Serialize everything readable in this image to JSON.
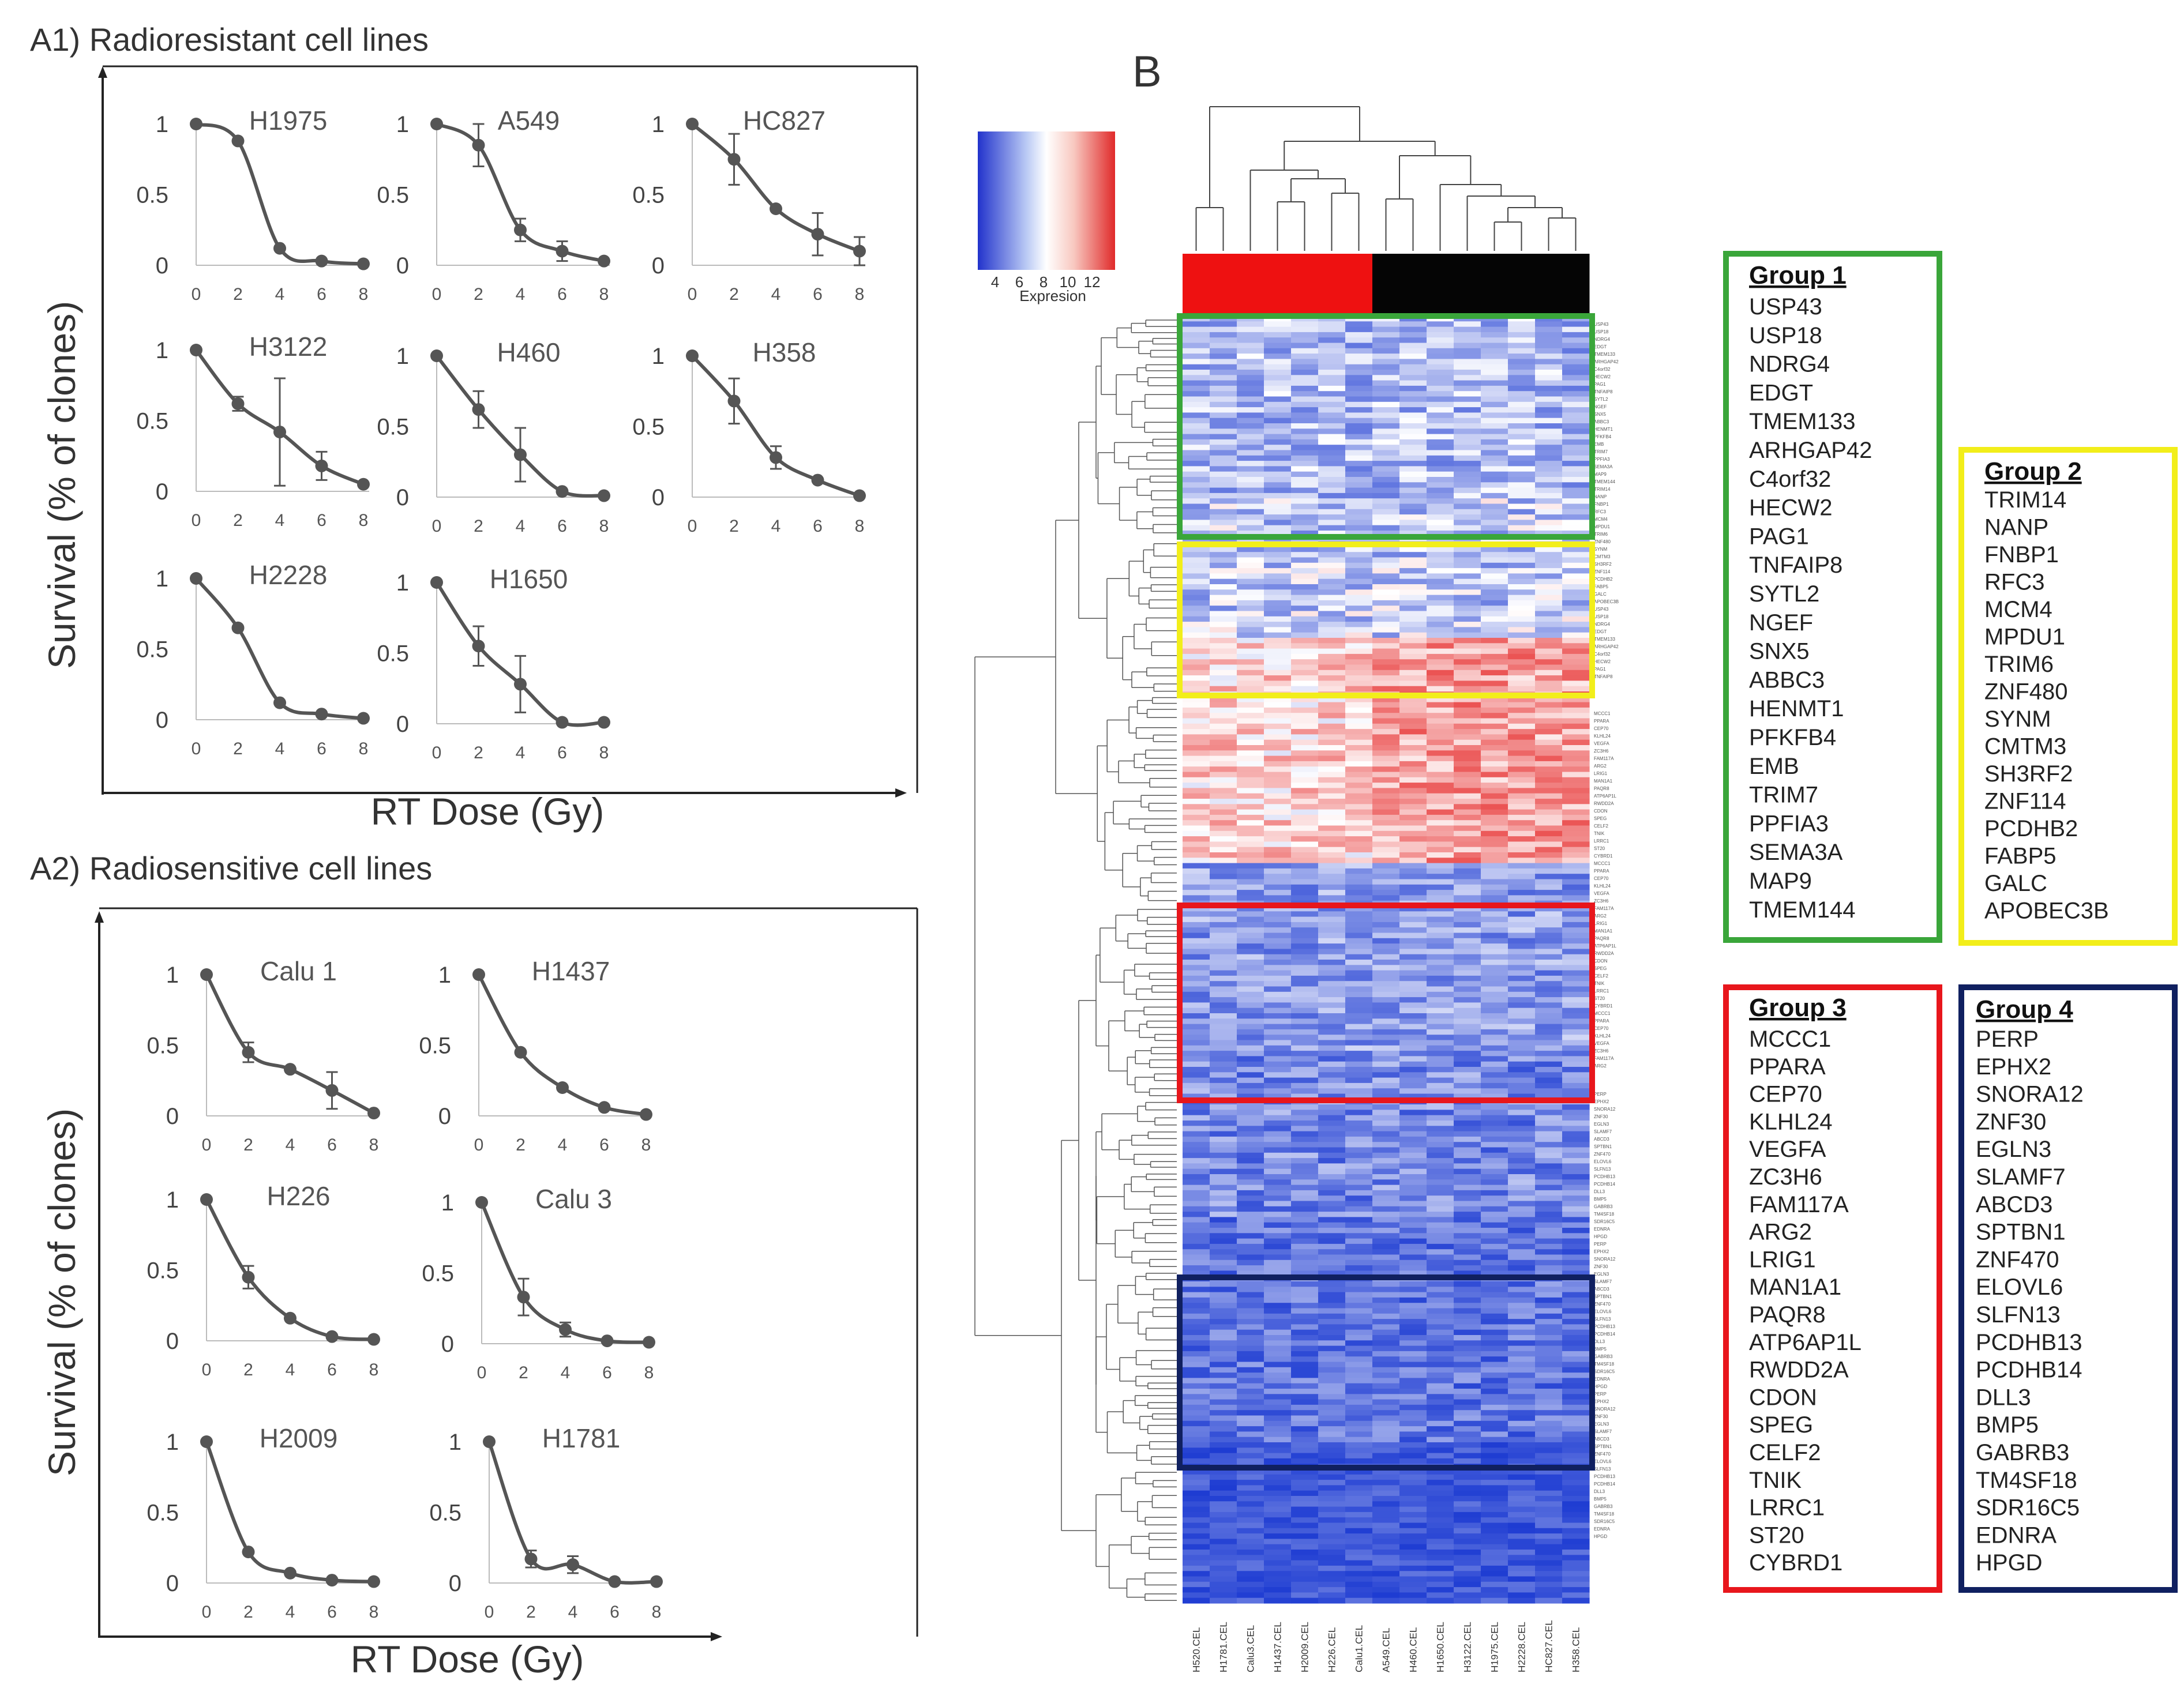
{
  "chart_data": [
    {
      "type": "line",
      "panel": "A1",
      "panel_title": "A1) Radioresistant cell lines",
      "ylabel": "Survival (% of clones)",
      "xlabel": "RT Dose (Gy)",
      "x": [
        0,
        2,
        4,
        6,
        8
      ],
      "yticks": [
        "0",
        "0.5",
        "1"
      ],
      "series": [
        {
          "name": "H1975",
          "values": [
            1,
            0.88,
            0.12,
            0.03,
            0.01
          ],
          "err": [
            0,
            0,
            0,
            0,
            0
          ]
        },
        {
          "name": "A549",
          "values": [
            1,
            0.85,
            0.25,
            0.1,
            0.03
          ],
          "err": [
            0,
            0.15,
            0.08,
            0.07,
            0
          ]
        },
        {
          "name": "HC827",
          "values": [
            1,
            0.75,
            0.4,
            0.22,
            0.1
          ],
          "err": [
            0,
            0.18,
            0,
            0.15,
            0.1
          ]
        },
        {
          "name": "H3122",
          "values": [
            1,
            0.62,
            0.42,
            0.18,
            0.05
          ],
          "err": [
            0,
            0.05,
            0.38,
            0.1,
            0
          ]
        },
        {
          "name": "H460",
          "values": [
            1,
            0.62,
            0.3,
            0.04,
            0.01
          ],
          "err": [
            0,
            0.13,
            0.19,
            0,
            0
          ]
        },
        {
          "name": "H358",
          "values": [
            1,
            0.68,
            0.28,
            0.12,
            0.01
          ],
          "err": [
            0,
            0.16,
            0.08,
            0,
            0
          ]
        },
        {
          "name": "H2228",
          "values": [
            1,
            0.65,
            0.12,
            0.04,
            0.01
          ],
          "err": [
            0,
            0,
            0,
            0,
            0
          ]
        },
        {
          "name": "H1650",
          "values": [
            1,
            0.55,
            0.28,
            0.01,
            0.01
          ],
          "err": [
            0,
            0.14,
            0.2,
            0,
            0
          ]
        }
      ]
    },
    {
      "type": "line",
      "panel": "A2",
      "panel_title": "A2) Radiosensitive cell lines",
      "ylabel": "Survival (% of clones)",
      "xlabel": "RT Dose (Gy)",
      "x": [
        0,
        2,
        4,
        6,
        8
      ],
      "yticks": [
        "0",
        "0.5",
        "1"
      ],
      "series": [
        {
          "name": "Calu 1",
          "values": [
            1,
            0.45,
            0.33,
            0.18,
            0.02
          ],
          "err": [
            0,
            0.07,
            0,
            0.13,
            0
          ]
        },
        {
          "name": "H1437",
          "values": [
            1,
            0.45,
            0.2,
            0.06,
            0.01
          ],
          "err": [
            0,
            0,
            0,
            0,
            0
          ]
        },
        {
          "name": "H226",
          "values": [
            1,
            0.45,
            0.16,
            0.03,
            0.01
          ],
          "err": [
            0,
            0.08,
            0,
            0,
            0
          ]
        },
        {
          "name": "Calu 3",
          "values": [
            1,
            0.33,
            0.1,
            0.02,
            0.01
          ],
          "err": [
            0,
            0.13,
            0.05,
            0,
            0
          ]
        },
        {
          "name": "H2009",
          "values": [
            1,
            0.22,
            0.07,
            0.02,
            0.01
          ],
          "err": [
            0,
            0,
            0,
            0,
            0
          ]
        },
        {
          "name": "H1781",
          "values": [
            1,
            0.17,
            0.13,
            0.01,
            0.01
          ],
          "err": [
            0,
            0.06,
            0.06,
            0,
            0
          ]
        }
      ]
    },
    {
      "type": "heatmap",
      "panel": "B",
      "panel_title": "B",
      "colorbar_label": "Expresion",
      "colorbar_ticks": [
        "4",
        "6",
        "8",
        "10",
        "12"
      ],
      "samples": [
        "H520.CEL",
        "H1781.CEL",
        "Calu3.CEL",
        "H1437.CEL",
        "H2009.CEL",
        "H226.CEL",
        "Calu1.CEL",
        "A549.CEL",
        "H460.CEL",
        "H1650.CEL",
        "H3122.CEL",
        "H1975.CEL",
        "H2228.CEL",
        "HC827.CEL",
        "H358.CEL"
      ],
      "sample_groups": [
        "sensitive",
        "sensitive",
        "sensitive",
        "sensitive",
        "sensitive",
        "sensitive",
        "sensitive",
        "resistant",
        "resistant",
        "resistant",
        "resistant",
        "resistant",
        "resistant",
        "resistant",
        "resistant"
      ],
      "group_colors": {
        "sensitive": "#ee1111",
        "resistant": "#050505",
        "group1": "#3aa63a",
        "group2": "#f2ee1a",
        "group3": "#e8161c",
        "group4": "#102060"
      },
      "groups": [
        {
          "title": "Group  1",
          "genes": [
            "USP43",
            "USP18",
            "NDRG4",
            "EDGT",
            "TMEM133",
            "ARHGAP42",
            "C4orf32",
            "HECW2",
            "PAG1",
            "TNFAIP8",
            "SYTL2",
            "NGEF",
            "SNX5",
            "ABBC3",
            "HENMT1",
            "PFKFB4",
            "EMB",
            "TRIM7",
            "PPFIA3",
            "SEMA3A",
            "MAP9",
            "TMEM144"
          ]
        },
        {
          "title": "Group  2",
          "genes": [
            "TRIM14",
            "NANP",
            "FNBP1",
            "RFC3",
            "MCM4",
            "MPDU1",
            "TRIM6",
            "ZNF480",
            "SYNM",
            "CMTM3",
            "SH3RF2",
            "ZNF114",
            "PCDHB2",
            "FABP5",
            "GALC",
            "APOBEC3B"
          ]
        },
        {
          "title": "Group  3",
          "genes": [
            "MCCC1",
            "PPARA",
            "CEP70",
            "KLHL24",
            "VEGFA",
            "ZC3H6",
            "FAM117A",
            "ARG2",
            "LRIG1",
            "MAN1A1",
            "PAQR8",
            "ATP6AP1L",
            "RWDD2A",
            "CDON",
            "SPEG",
            "CELF2",
            "TNIK",
            "LRRC1",
            "ST20",
            "CYBRD1"
          ]
        },
        {
          "title": "Group 4",
          "genes": [
            "PERP",
            "EPHX2",
            "SNORA12",
            "ZNF30",
            "EGLN3",
            "SLAMF7",
            "ABCD3",
            "SPTBN1",
            "ZNF470",
            "ELOVL6",
            "SLFN13",
            "PCDHB13",
            "PCDHB14",
            "DLL3",
            "BMP5",
            "GABRB3",
            "TM4SF18",
            "SDR16C5",
            "EDNRA",
            "HPGD"
          ]
        }
      ]
    }
  ]
}
